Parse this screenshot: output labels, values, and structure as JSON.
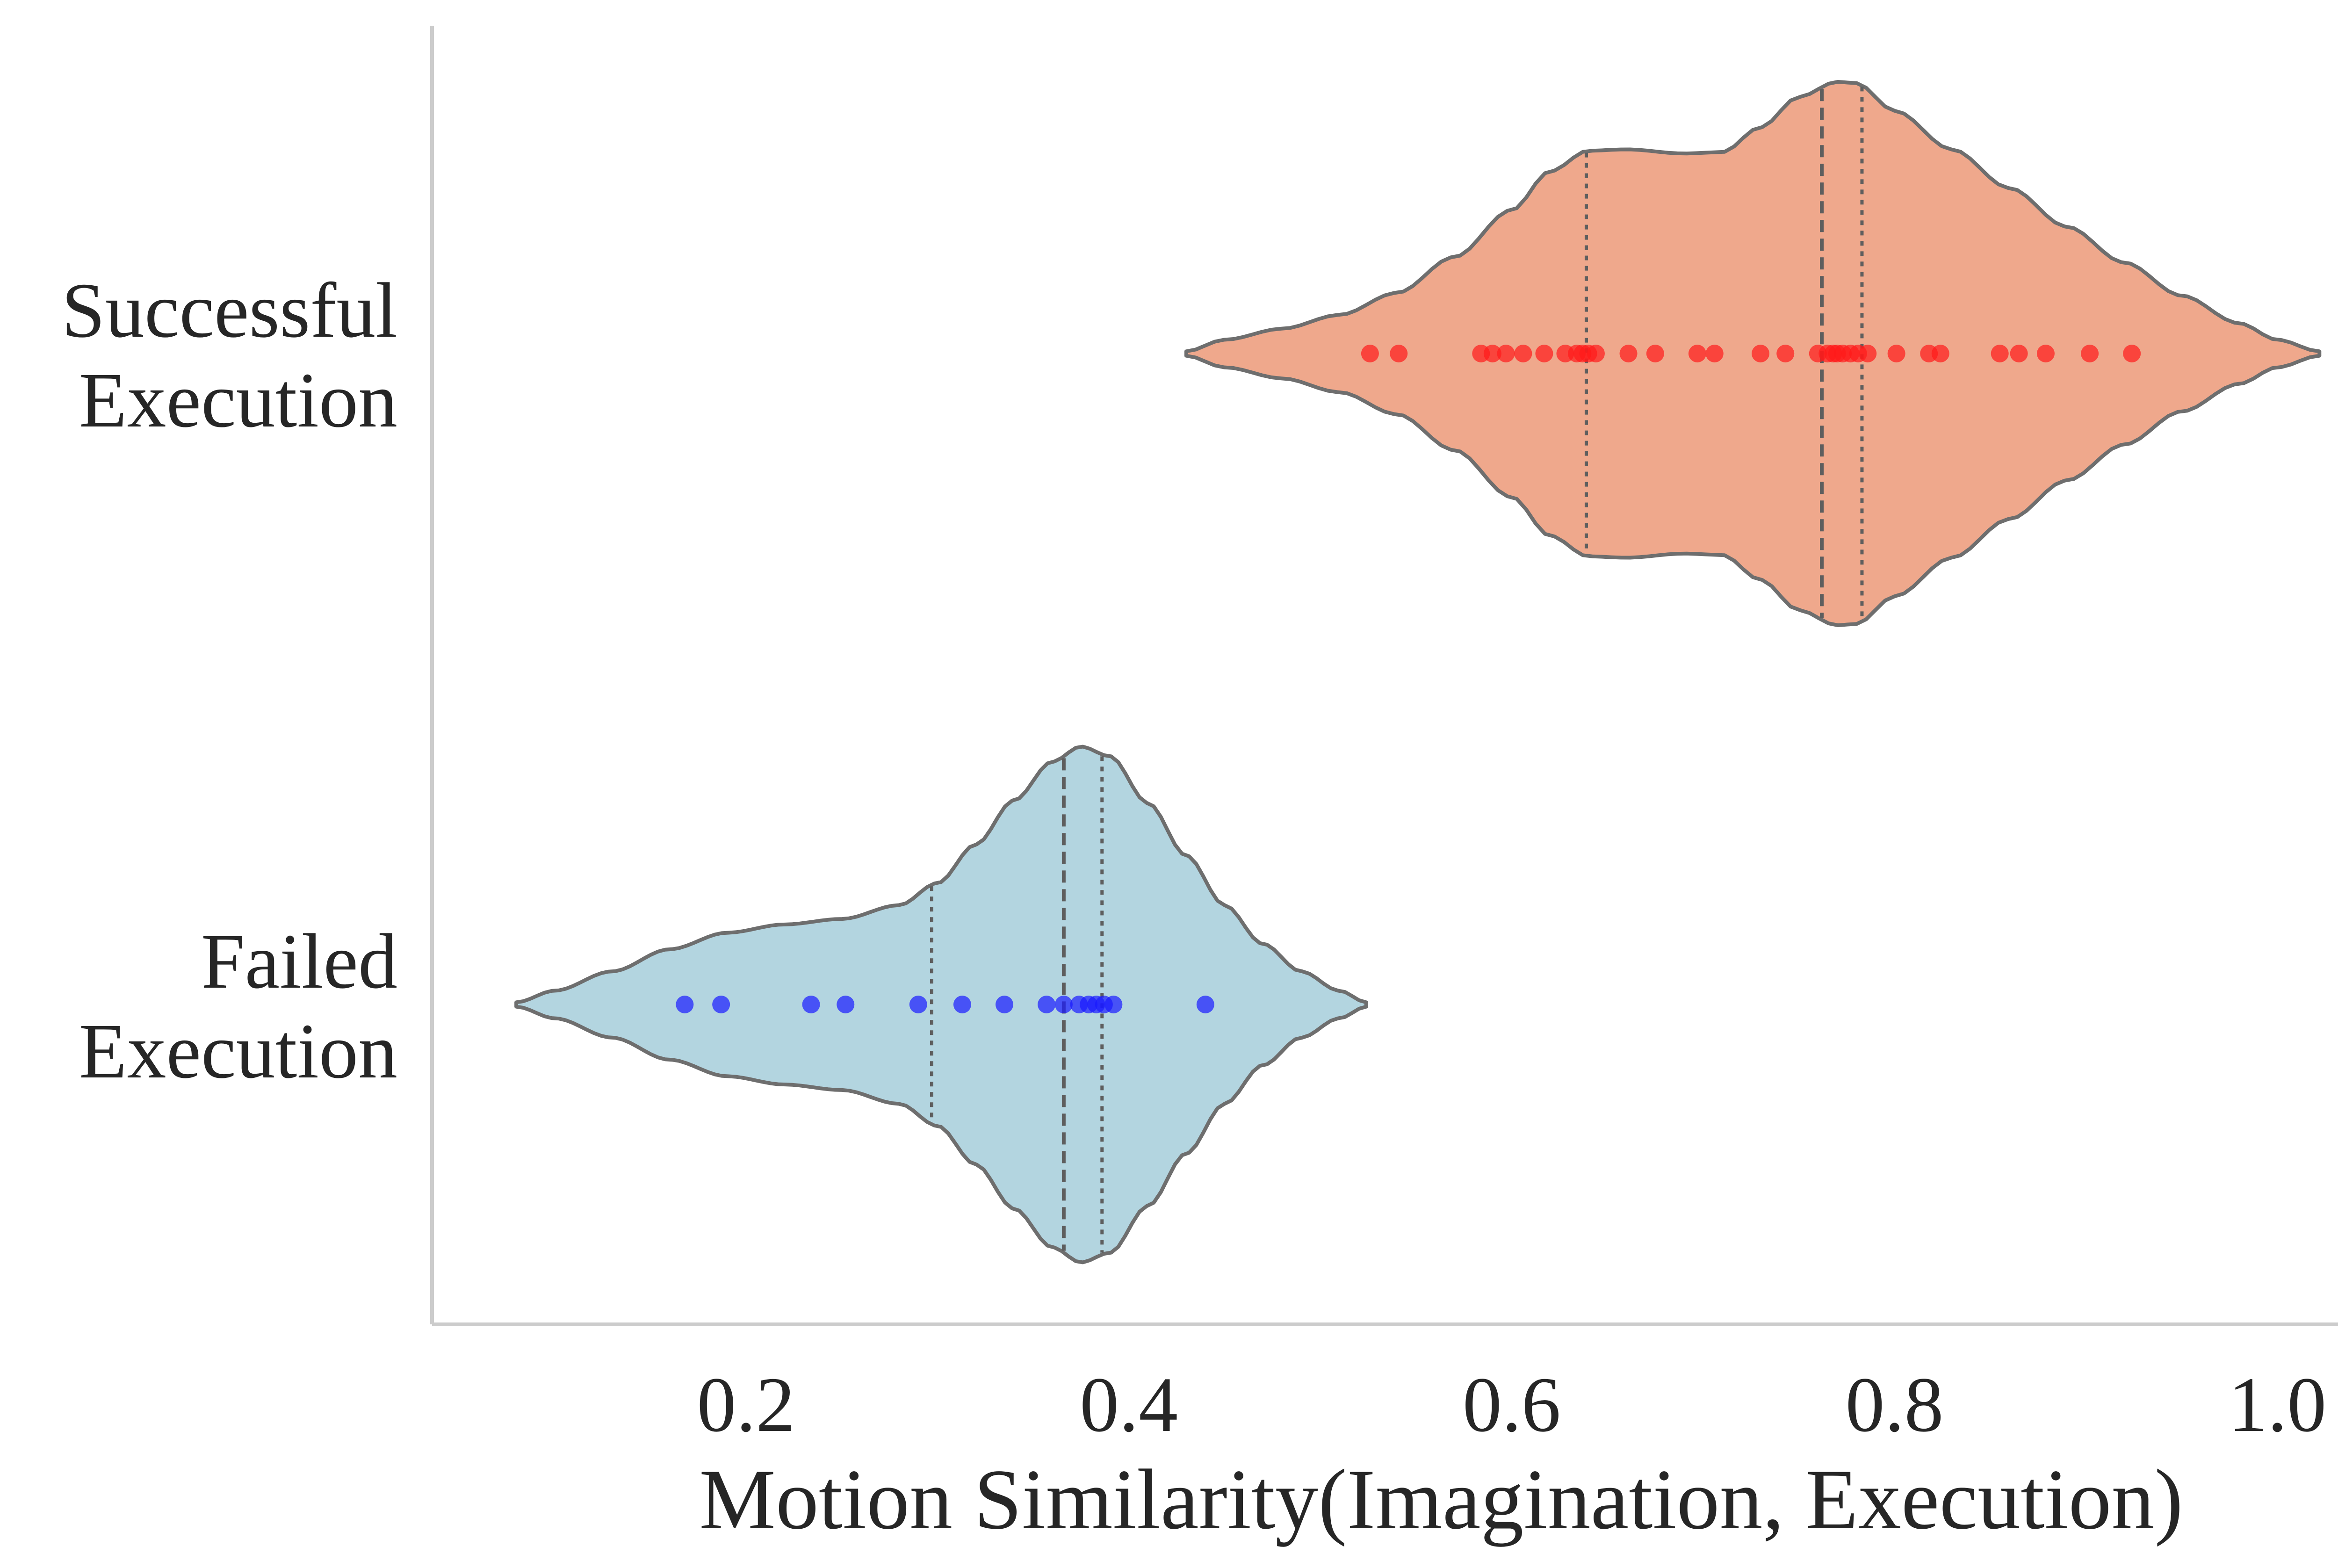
{
  "chart_data": {
    "type": "violin",
    "orientation": "horizontal",
    "title": "",
    "xlabel": "Motion Similarity(Imagination, Execution)",
    "ylabel": "",
    "xlim": [
      0.036,
      1.061
    ],
    "xticks": [
      0.2,
      0.4,
      0.6,
      0.8,
      1.0
    ],
    "xtick_labels": [
      "0.2",
      "0.4",
      "0.6",
      "0.8",
      "1.0"
    ],
    "grid": false,
    "legend": "none",
    "categories": [
      {
        "label_lines": [
          "Successful",
          "Execution"
        ]
      },
      {
        "label_lines": [
          "Failed",
          "Execution"
        ]
      }
    ],
    "series": [
      {
        "category_index": 0,
        "fill_color": "#efa88c",
        "point_color": "#ff1a1a",
        "quartiles": [
          0.639,
          0.762,
          0.783
        ],
        "density_support": [
          0.43,
          1.022
        ],
        "density_profile": [
          [
            0.43,
            0.008
          ],
          [
            0.45,
            0.05
          ],
          [
            0.48,
            0.09
          ],
          [
            0.51,
            0.14
          ],
          [
            0.54,
            0.22
          ],
          [
            0.57,
            0.35
          ],
          [
            0.6,
            0.52
          ],
          [
            0.62,
            0.66
          ],
          [
            0.64,
            0.735
          ],
          [
            0.66,
            0.74
          ],
          [
            0.69,
            0.725
          ],
          [
            0.71,
            0.73
          ],
          [
            0.73,
            0.82
          ],
          [
            0.75,
            0.93
          ],
          [
            0.77,
            0.985
          ],
          [
            0.78,
            0.98
          ],
          [
            0.8,
            0.88
          ],
          [
            0.83,
            0.74
          ],
          [
            0.86,
            0.6
          ],
          [
            0.89,
            0.46
          ],
          [
            0.92,
            0.33
          ],
          [
            0.95,
            0.21
          ],
          [
            0.98,
            0.11
          ],
          [
            1.0,
            0.05
          ],
          [
            1.022,
            0.008
          ]
        ],
        "points": [
          0.526,
          0.541,
          0.584,
          0.59,
          0.597,
          0.606,
          0.617,
          0.628,
          0.634,
          0.637,
          0.64,
          0.644,
          0.661,
          0.675,
          0.697,
          0.706,
          0.73,
          0.743,
          0.76,
          0.765,
          0.768,
          0.77,
          0.773,
          0.777,
          0.781,
          0.786,
          0.801,
          0.818,
          0.824,
          0.855,
          0.865,
          0.879,
          0.902,
          0.924
        ]
      },
      {
        "category_index": 1,
        "fill_color": "#b3d5e0",
        "point_color": "#1a1aff",
        "quartiles": [
          0.297,
          0.366,
          0.386
        ],
        "density_support": [
          0.08,
          0.524
        ],
        "density_profile": [
          [
            0.08,
            0.008
          ],
          [
            0.1,
            0.05
          ],
          [
            0.13,
            0.12
          ],
          [
            0.16,
            0.2
          ],
          [
            0.19,
            0.26
          ],
          [
            0.22,
            0.29
          ],
          [
            0.25,
            0.31
          ],
          [
            0.28,
            0.36
          ],
          [
            0.3,
            0.44
          ],
          [
            0.32,
            0.58
          ],
          [
            0.34,
            0.74
          ],
          [
            0.36,
            0.88
          ],
          [
            0.375,
            0.935
          ],
          [
            0.39,
            0.9
          ],
          [
            0.41,
            0.73
          ],
          [
            0.43,
            0.54
          ],
          [
            0.45,
            0.36
          ],
          [
            0.47,
            0.22
          ],
          [
            0.49,
            0.12
          ],
          [
            0.51,
            0.05
          ],
          [
            0.524,
            0.008
          ]
        ],
        "points": [
          0.168,
          0.187,
          0.234,
          0.252,
          0.29,
          0.313,
          0.335,
          0.357,
          0.366,
          0.374,
          0.379,
          0.383,
          0.387,
          0.392,
          0.44
        ]
      }
    ]
  }
}
